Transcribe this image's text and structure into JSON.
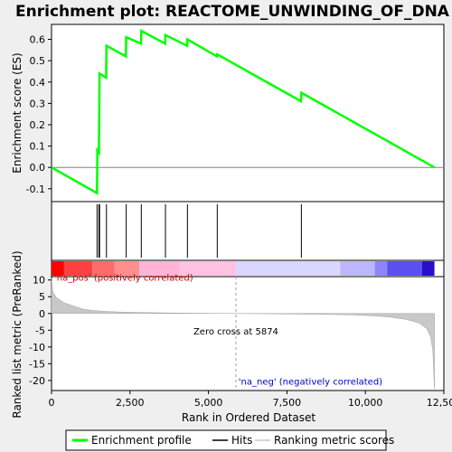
{
  "chart_data": {
    "type": "line",
    "title": "Enrichment plot: REACTOME_UNWINDING_OF_DNA",
    "xlabel": "Rank in Ordered Dataset",
    "ylabel_top": "Enrichment score (ES)",
    "ylabel_bottom": "Ranked list metric (PreRanked)",
    "xlim": [
      0,
      12500
    ],
    "x_ticks": [
      0,
      2500,
      5000,
      7500,
      10000,
      12500
    ],
    "x_tick_labels": [
      "0",
      "2,500",
      "5,000",
      "7,500",
      "10,000",
      "12,500"
    ],
    "es_ylim": [
      -0.16,
      0.67
    ],
    "es_ticks": [
      -0.1,
      0.0,
      0.1,
      0.2,
      0.3,
      0.4,
      0.5,
      0.6
    ],
    "es_tick_labels": [
      "-0.1",
      "0.0",
      "0.1",
      "0.2",
      "0.3",
      "0.4",
      "0.5",
      "0.6"
    ],
    "metric_ylim": [
      -23,
      11
    ],
    "metric_ticks": [
      10,
      5,
      0,
      -5,
      -10,
      -15,
      -20
    ],
    "metric_tick_labels": [
      "10",
      "5",
      "0",
      "-5",
      "-10",
      "-15",
      "-20"
    ],
    "total_ranks": 12200,
    "enrichment_profile": [
      [
        0,
        0.0
      ],
      [
        1450,
        -0.12
      ],
      [
        1460,
        0.08
      ],
      [
        1510,
        0.07
      ],
      [
        1520,
        0.26
      ],
      [
        1530,
        0.44
      ],
      [
        1740,
        0.42
      ],
      [
        1750,
        0.57
      ],
      [
        2370,
        0.52
      ],
      [
        2380,
        0.61
      ],
      [
        2850,
        0.58
      ],
      [
        2860,
        0.64
      ],
      [
        3620,
        0.58
      ],
      [
        3630,
        0.62
      ],
      [
        4320,
        0.57
      ],
      [
        4330,
        0.6
      ],
      [
        5270,
        0.52
      ],
      [
        5280,
        0.53
      ],
      [
        7950,
        0.31
      ],
      [
        7960,
        0.35
      ],
      [
        12200,
        0.0
      ]
    ],
    "hits": [
      1450,
      1510,
      1520,
      1530,
      1750,
      2380,
      2860,
      3630,
      4330,
      5280,
      7960
    ],
    "ranked_metric_profile": [
      [
        0,
        10.5
      ],
      [
        40,
        6.5
      ],
      [
        150,
        4.8
      ],
      [
        400,
        3.2
      ],
      [
        700,
        2.2
      ],
      [
        1000,
        1.3
      ],
      [
        1300,
        0.9
      ],
      [
        1700,
        0.6
      ],
      [
        2300,
        0.4
      ],
      [
        3000,
        0.25
      ],
      [
        4000,
        0.12
      ],
      [
        5000,
        0.05
      ],
      [
        5874,
        0.0
      ],
      [
        7000,
        -0.1
      ],
      [
        8500,
        -0.25
      ],
      [
        9500,
        -0.4
      ],
      [
        10300,
        -0.7
      ],
      [
        10800,
        -1.1
      ],
      [
        11300,
        -1.8
      ],
      [
        11700,
        -2.8
      ],
      [
        11950,
        -4.5
      ],
      [
        12080,
        -7.0
      ],
      [
        12150,
        -11.0
      ],
      [
        12200,
        -22.5
      ]
    ],
    "zero_cross_rank": 5874,
    "zero_cross_label": "Zero cross at 5874",
    "pos_label": "'na_pos' (positively correlated)",
    "neg_label": "'na_neg' (negatively correlated)",
    "legend": [
      "Enrichment profile",
      "Hits",
      "Ranking metric scores"
    ],
    "colors": {
      "profile": "#00ff00",
      "hits": "#000000",
      "metric_fill": "#c8c8c8",
      "pos_text": "#cc0000",
      "neg_text": "#0000cc",
      "zero_line": "#808080"
    },
    "heatmap_segments": [
      {
        "from": 0,
        "to": 400,
        "color": "#ff0000"
      },
      {
        "from": 400,
        "to": 1300,
        "color": "#ff4040"
      },
      {
        "from": 1300,
        "to": 2000,
        "color": "#ff6a6a"
      },
      {
        "from": 2000,
        "to": 2800,
        "color": "#ff8f8f"
      },
      {
        "from": 2800,
        "to": 4100,
        "color": "#ffb4d8"
      },
      {
        "from": 4100,
        "to": 5874,
        "color": "#ffc2e2"
      },
      {
        "from": 5874,
        "to": 9200,
        "color": "#d9d6ff"
      },
      {
        "from": 9200,
        "to": 10300,
        "color": "#bcb6ff"
      },
      {
        "from": 10300,
        "to": 10700,
        "color": "#8e84ff"
      },
      {
        "from": 10700,
        "to": 11800,
        "color": "#5a4ff0"
      },
      {
        "from": 11800,
        "to": 12200,
        "color": "#2a0fc8"
      }
    ]
  }
}
